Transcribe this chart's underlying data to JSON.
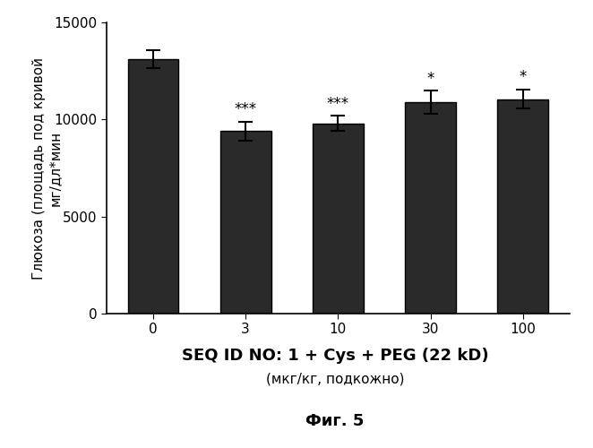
{
  "categories": [
    "0",
    "3",
    "10",
    "30",
    "100"
  ],
  "values": [
    13100,
    9400,
    9800,
    10900,
    11050
  ],
  "errors": [
    450,
    500,
    400,
    600,
    500
  ],
  "bar_color": "#2a2a2a",
  "bar_edgecolor": "#000000",
  "significance": [
    "",
    "***",
    "***",
    "*",
    "*"
  ],
  "ylabel_line1": "Глюкоза (площадь под кривой",
  "ylabel_line2": "мг/дл*мин",
  "xlabel_line1": "SEQ ID NO: 1 + Cys + PEG (22 kD)",
  "xlabel_line2": "(мкг/кг, подкожно)",
  "fig_label": "Фиг. 5",
  "ylim": [
    0,
    15000
  ],
  "yticks": [
    0,
    5000,
    10000,
    15000
  ],
  "background_color": "#ffffff",
  "tick_fontsize": 11,
  "label_fontsize": 11,
  "sig_fontsize": 12,
  "xlabel1_fontsize": 13,
  "xlabel2_fontsize": 11,
  "fig_label_fontsize": 13
}
